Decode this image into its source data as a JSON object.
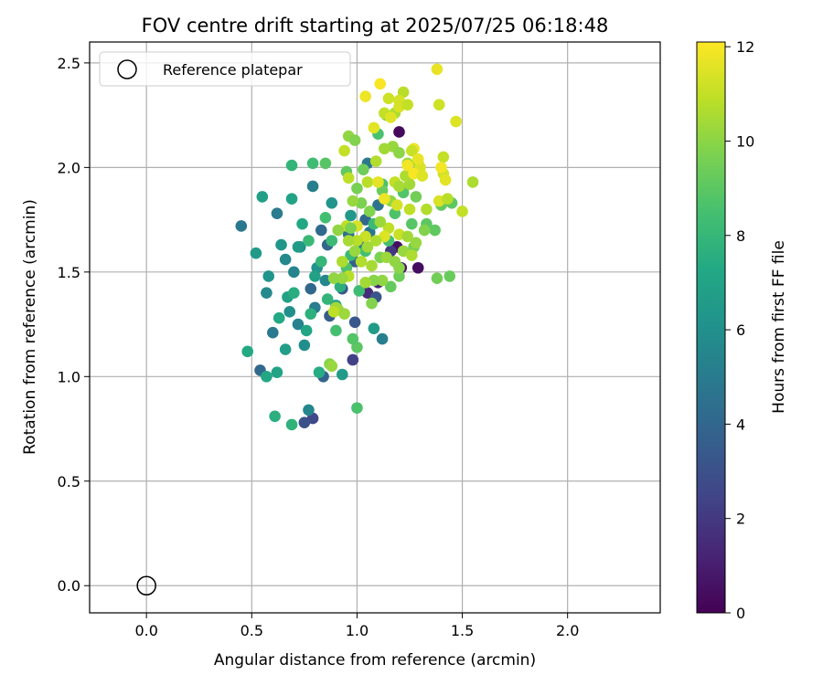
{
  "chart_data": {
    "type": "scatter",
    "title": "FOV centre drift starting at 2025/07/25 06:18:48",
    "xlabel": "Angular distance from reference (arcmin)",
    "ylabel": "Rotation from reference (arcmin)",
    "xlim": [
      -0.27,
      2.44
    ],
    "ylim": [
      -0.13,
      2.6
    ],
    "xticks": [
      "0.0",
      "0.5",
      "1.0",
      "1.5",
      "2.0"
    ],
    "yticks": [
      "0.0",
      "0.5",
      "1.0",
      "1.5",
      "2.0",
      "2.5"
    ],
    "grid": true,
    "legend_position": "upper-left",
    "legend": [
      "Reference platepar"
    ],
    "reference_point": {
      "x": 0.0,
      "y": 0.0
    },
    "colorbar": {
      "label": "Hours from first FF file",
      "range": [
        0,
        12.1
      ],
      "ticks": [
        "0",
        "2",
        "4",
        "6",
        "8",
        "10",
        "12"
      ],
      "colormap": "viridis"
    },
    "series": [
      {
        "points": [
          [
            1.2,
            2.17,
            0.3
          ],
          [
            1.19,
            1.62,
            0.5
          ],
          [
            1.21,
            1.52,
            0.8
          ],
          [
            1.29,
            1.52,
            0.4
          ],
          [
            1.1,
            1.45,
            1.2
          ],
          [
            1.05,
            1.4,
            1.5
          ],
          [
            0.98,
            1.08,
            2.3
          ],
          [
            0.79,
            0.8,
            2.6
          ],
          [
            0.75,
            0.78,
            3.0
          ],
          [
            1.16,
            1.6,
            2.0
          ],
          [
            0.99,
            1.26,
            3.3
          ],
          [
            0.87,
            1.29,
            3.5
          ],
          [
            0.84,
            1.0,
            3.8
          ],
          [
            0.54,
            1.03,
            4.1
          ],
          [
            0.78,
            1.42,
            4.0
          ],
          [
            0.93,
            1.42,
            3.4
          ],
          [
            1.09,
            1.38,
            3.2
          ],
          [
            0.99,
            1.55,
            3.6
          ],
          [
            0.86,
            1.63,
            3.9
          ],
          [
            0.83,
            1.7,
            4.2
          ],
          [
            0.96,
            1.68,
            4.4
          ],
          [
            1.04,
            1.75,
            4.0
          ],
          [
            1.1,
            1.82,
            4.6
          ],
          [
            1.05,
            2.02,
            4.8
          ],
          [
            0.45,
            1.72,
            4.8
          ],
          [
            0.62,
            1.78,
            5.0
          ],
          [
            0.79,
            1.91,
            5.2
          ],
          [
            0.6,
            1.21,
            4.9
          ],
          [
            0.72,
            1.25,
            5.3
          ],
          [
            0.8,
            1.33,
            5.1
          ],
          [
            0.85,
            1.46,
            5.5
          ],
          [
            0.7,
            1.5,
            5.4
          ],
          [
            0.66,
            1.56,
            5.6
          ],
          [
            0.73,
            1.62,
            5.8
          ],
          [
            0.57,
            1.4,
            5.7
          ],
          [
            0.68,
            1.31,
            6.0
          ],
          [
            0.75,
            1.15,
            5.9
          ],
          [
            0.81,
            1.52,
            6.1
          ],
          [
            0.64,
            1.63,
            6.3
          ],
          [
            0.88,
            1.83,
            6.2
          ],
          [
            0.97,
            1.77,
            6.4
          ],
          [
            1.01,
            1.64,
            5.0
          ],
          [
            1.06,
            1.69,
            4.7
          ],
          [
            1.12,
            1.18,
            5.2
          ],
          [
            1.08,
            1.23,
            6.6
          ],
          [
            0.9,
            1.34,
            6.8
          ],
          [
            0.67,
            1.38,
            6.9
          ],
          [
            0.62,
            1.02,
            7.0
          ],
          [
            0.57,
            1.0,
            7.2
          ],
          [
            0.76,
            1.22,
            7.1
          ],
          [
            0.82,
            1.02,
            7.4
          ],
          [
            0.66,
            1.13,
            6.7
          ],
          [
            0.48,
            1.12,
            7.3
          ],
          [
            0.61,
            0.81,
            7.6
          ],
          [
            0.69,
            0.77,
            7.8
          ],
          [
            0.77,
            0.84,
            5.5
          ],
          [
            0.93,
            1.01,
            6.5
          ],
          [
            0.52,
            1.59,
            6.5
          ],
          [
            0.58,
            1.48,
            6.2
          ],
          [
            0.55,
            1.86,
            6.8
          ],
          [
            0.69,
            1.85,
            7.0
          ],
          [
            0.72,
            1.62,
            6.6
          ],
          [
            0.8,
            1.48,
            6.9
          ],
          [
            0.74,
            1.73,
            7.2
          ],
          [
            0.63,
            1.28,
            7.3
          ],
          [
            0.7,
            1.4,
            7.5
          ],
          [
            0.78,
            1.3,
            7.7
          ],
          [
            0.86,
            1.37,
            7.9
          ],
          [
            0.83,
            1.55,
            8.0
          ],
          [
            0.92,
            1.43,
            7.6
          ],
          [
            0.88,
            1.65,
            8.2
          ],
          [
            0.97,
            1.58,
            8.1
          ],
          [
            1.01,
            1.41,
            8.3
          ],
          [
            1.04,
            1.6,
            8.4
          ],
          [
            1.08,
            1.73,
            8.2
          ],
          [
            1.12,
            1.92,
            8.6
          ],
          [
            1.15,
            1.65,
            8.5
          ],
          [
            1.18,
            1.78,
            8.7
          ],
          [
            1.22,
            1.88,
            8.8
          ],
          [
            1.26,
            1.73,
            8.9
          ],
          [
            1.33,
            1.73,
            9.0
          ],
          [
            1.37,
            1.7,
            9.1
          ],
          [
            1.4,
            1.82,
            9.2
          ],
          [
            1.45,
            1.83,
            9.0
          ],
          [
            1.44,
            1.48,
            9.3
          ],
          [
            1.38,
            1.47,
            9.5
          ],
          [
            1.27,
            1.62,
            9.6
          ],
          [
            1.2,
            1.48,
            9.4
          ],
          [
            1.16,
            1.43,
            9.2
          ],
          [
            1.11,
            1.57,
            9.7
          ],
          [
            1.07,
            1.35,
            9.8
          ],
          [
            1.0,
            1.14,
            9.0
          ],
          [
            0.98,
            1.18,
            8.8
          ],
          [
            1.0,
            0.85,
            8.6
          ],
          [
            0.9,
            1.22,
            8.5
          ],
          [
            0.87,
            1.06,
            9.9
          ],
          [
            0.91,
            1.32,
            10.0
          ],
          [
            0.95,
            1.52,
            8.7
          ],
          [
            0.85,
            1.76,
            8.4
          ],
          [
            0.77,
            1.65,
            8.1
          ],
          [
            0.79,
            2.02,
            8.3
          ],
          [
            0.85,
            2.02,
            8.9
          ],
          [
            0.69,
            2.01,
            7.9
          ],
          [
            0.95,
            1.98,
            9.1
          ],
          [
            1.0,
            1.9,
            9.6
          ],
          [
            1.03,
            1.99,
            9.4
          ],
          [
            1.06,
            1.79,
            9.8
          ],
          [
            1.1,
            2.16,
            8.6
          ],
          [
            1.14,
            2.25,
            9.9
          ],
          [
            1.17,
            2.1,
            10.2
          ],
          [
            1.2,
            2.07,
            10.0
          ],
          [
            1.24,
            2.02,
            10.3
          ],
          [
            1.29,
            2.02,
            10.5
          ],
          [
            1.25,
            1.92,
            10.4
          ],
          [
            1.28,
            1.86,
            9.5
          ],
          [
            1.23,
            1.96,
            10.6
          ],
          [
            1.16,
            1.84,
            10.1
          ],
          [
            1.12,
            1.89,
            9.3
          ],
          [
            1.09,
            2.03,
            10.7
          ],
          [
            1.05,
            1.93,
            10.8
          ],
          [
            1.02,
            1.83,
            9.7
          ],
          [
            0.98,
            1.84,
            10.2
          ],
          [
            0.96,
            1.95,
            10.9
          ],
          [
            0.94,
            2.08,
            11.0
          ],
          [
            0.96,
            2.15,
            10.1
          ],
          [
            0.99,
            2.13,
            9.8
          ],
          [
            1.13,
            2.09,
            10.4
          ],
          [
            1.18,
            2.26,
            10.6
          ],
          [
            1.22,
            2.36,
            10.8
          ],
          [
            1.15,
            2.33,
            11.2
          ],
          [
            1.13,
            2.26,
            11.0
          ],
          [
            1.16,
            2.24,
            11.5
          ],
          [
            1.2,
            2.29,
            11.4
          ],
          [
            1.2,
            2.32,
            11.3
          ],
          [
            1.24,
            2.3,
            11.0
          ],
          [
            1.08,
            2.19,
            11.6
          ],
          [
            1.04,
            2.34,
            11.8
          ],
          [
            1.11,
            2.4,
            12.0
          ],
          [
            1.38,
            2.47,
            11.7
          ],
          [
            1.39,
            2.3,
            11.2
          ],
          [
            1.47,
            2.22,
            11.5
          ],
          [
            1.41,
            2.05,
            11.0
          ],
          [
            1.41,
            1.97,
            11.3
          ],
          [
            1.42,
            1.94,
            11.6
          ],
          [
            1.4,
            2.0,
            11.9
          ],
          [
            1.3,
            2.0,
            11.4
          ],
          [
            1.27,
            2.09,
            11.8
          ],
          [
            1.26,
            2.08,
            11.1
          ],
          [
            1.24,
            2.01,
            11.9
          ],
          [
            1.27,
            1.97,
            12.0
          ],
          [
            1.31,
            1.96,
            11.5
          ],
          [
            1.29,
            2.04,
            11.7
          ],
          [
            1.39,
            1.84,
            11.4
          ],
          [
            1.5,
            1.79,
            11.0
          ],
          [
            1.55,
            1.93,
            10.6
          ],
          [
            1.43,
            1.85,
            10.8
          ],
          [
            1.33,
            1.8,
            10.7
          ],
          [
            1.25,
            1.8,
            10.9
          ],
          [
            1.19,
            1.82,
            11.3
          ],
          [
            1.13,
            1.85,
            11.8
          ],
          [
            1.1,
            1.93,
            11.6
          ],
          [
            1.18,
            1.93,
            11.0
          ],
          [
            1.2,
            1.91,
            10.5
          ],
          [
            1.15,
            1.71,
            10.9
          ],
          [
            1.11,
            1.74,
            10.3
          ],
          [
            1.13,
            1.67,
            11.5
          ],
          [
            1.09,
            1.65,
            10.6
          ],
          [
            1.05,
            1.62,
            10.4
          ],
          [
            1.04,
            1.67,
            11.1
          ],
          [
            1.0,
            1.72,
            11.4
          ],
          [
            1.0,
            1.65,
            10.8
          ],
          [
            0.99,
            1.6,
            10.2
          ],
          [
            1.02,
            1.55,
            10.7
          ],
          [
            1.07,
            1.53,
            10.5
          ],
          [
            1.14,
            1.57,
            10.3
          ],
          [
            1.18,
            1.55,
            10.1
          ],
          [
            1.22,
            1.6,
            10.2
          ],
          [
            1.26,
            1.58,
            10.6
          ],
          [
            1.2,
            1.52,
            10.0
          ],
          [
            1.12,
            1.46,
            10.1
          ],
          [
            1.08,
            1.46,
            9.9
          ],
          [
            1.04,
            1.45,
            10.4
          ],
          [
            0.93,
            1.55,
            10.6
          ],
          [
            0.96,
            1.48,
            10.8
          ],
          [
            0.93,
            1.47,
            10.2
          ],
          [
            0.89,
            1.47,
            10.1
          ],
          [
            0.9,
            1.33,
            10.4
          ],
          [
            0.89,
            1.31,
            10.9
          ],
          [
            0.94,
            1.3,
            10.3
          ],
          [
            0.88,
            1.05,
            10.2
          ],
          [
            0.95,
            1.72,
            10.9
          ],
          [
            0.97,
            1.71,
            9.7
          ],
          [
            0.96,
            1.65,
            10.5
          ],
          [
            0.91,
            1.7,
            10.1
          ],
          [
            1.2,
            1.68,
            11.1
          ],
          [
            1.24,
            1.67,
            10.4
          ],
          [
            1.28,
            1.64,
            10.2
          ],
          [
            1.32,
            1.7,
            9.8
          ]
        ]
      }
    ]
  }
}
